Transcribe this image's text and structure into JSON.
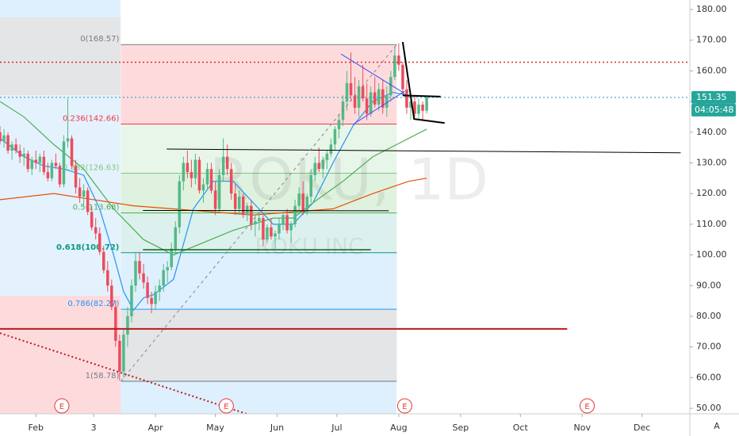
{
  "chart_data": {
    "type": "candlestick",
    "watermark": "ROKU, 1D",
    "subtitle": "ROKU INC",
    "xlim": [
      13,
      359
    ],
    "ylim": [
      48.2,
      183.1
    ],
    "grid": false,
    "up_color": "#53b987",
    "down_color": "#eb4d5c",
    "xticks": [
      {
        "value": 31,
        "label": "Feb"
      },
      {
        "value": 60,
        "label": "3"
      },
      {
        "value": 91,
        "label": "Apr"
      },
      {
        "value": 121,
        "label": "May"
      },
      {
        "value": 152,
        "label": "Jun"
      },
      {
        "value": 182,
        "label": "Jul"
      },
      {
        "value": 213,
        "label": "Aug"
      },
      {
        "value": 244,
        "label": "Sep"
      },
      {
        "value": 274,
        "label": "Oct"
      },
      {
        "value": 305,
        "label": "Nov"
      },
      {
        "value": 335,
        "label": "Dec"
      }
    ],
    "yticks": [
      {
        "value": 50,
        "label": "50.00"
      },
      {
        "value": 60,
        "label": "60.00"
      },
      {
        "value": 70,
        "label": "70.00"
      },
      {
        "value": 80,
        "label": "80.00"
      },
      {
        "value": 90,
        "label": "90.00"
      },
      {
        "value": 100,
        "label": "100.00"
      },
      {
        "value": 110,
        "label": "110.00"
      },
      {
        "value": 120,
        "label": "120.00"
      },
      {
        "value": 130,
        "label": "130.00"
      },
      {
        "value": 140,
        "label": "140.00"
      },
      {
        "value": 150,
        "label": "150.00"
      },
      {
        "value": 160,
        "label": "160.00"
      },
      {
        "value": 170,
        "label": "170.00"
      },
      {
        "value": 180,
        "label": "180.00"
      }
    ],
    "candles": {
      "x": [
        13,
        15,
        17,
        19,
        21,
        23,
        25,
        27,
        29,
        31,
        33,
        35,
        37,
        39,
        41,
        43,
        45,
        47,
        49,
        51,
        53,
        55,
        57,
        59,
        61,
        63,
        65,
        67,
        69,
        71,
        73,
        75,
        77,
        79,
        81,
        83,
        85,
        87,
        89,
        91,
        93,
        95,
        97,
        99,
        101,
        103,
        105,
        107,
        109,
        111,
        113,
        115,
        117,
        119,
        121,
        123,
        125,
        127,
        129,
        131,
        133,
        135,
        137,
        139,
        141,
        143,
        145,
        147,
        149,
        151,
        153,
        155,
        157,
        159,
        161,
        163,
        165,
        167,
        169,
        171,
        173,
        175,
        177,
        179,
        181,
        183,
        185,
        187,
        189,
        191,
        193,
        195,
        197,
        199,
        201,
        203,
        205,
        207,
        209,
        211,
        213,
        215,
        217,
        219,
        221,
        223,
        225,
        227
      ],
      "open": [
        140,
        137,
        139,
        134,
        136,
        134,
        132,
        133,
        128,
        131,
        130,
        132,
        127,
        125,
        130,
        129,
        123,
        137,
        138,
        129,
        122,
        119,
        121,
        114,
        109,
        107,
        101,
        95,
        90,
        83,
        72,
        62,
        74,
        80,
        90,
        98,
        94,
        91,
        86,
        84,
        88,
        90,
        95,
        96,
        102,
        109,
        124,
        130,
        127,
        125,
        131,
        121,
        123,
        128,
        121,
        115,
        126,
        132,
        128,
        120,
        115,
        119,
        113,
        116,
        110,
        111,
        112,
        105,
        109,
        106,
        107,
        110,
        113,
        108,
        110,
        116,
        120,
        114,
        119,
        126,
        130,
        128,
        131,
        133,
        136,
        141,
        144,
        150,
        156,
        152,
        148,
        155,
        151,
        146,
        153,
        149,
        154,
        148,
        152,
        158,
        165,
        162,
        154,
        148,
        150,
        146,
        149,
        147
      ],
      "high": [
        142,
        141,
        140,
        137,
        138,
        136,
        135,
        134,
        132,
        134,
        133,
        134,
        130,
        131,
        133,
        130,
        139,
        151,
        139,
        131,
        125,
        123,
        122,
        116,
        112,
        109,
        103,
        98,
        92,
        85,
        74,
        76,
        83,
        92,
        101,
        101,
        97,
        93,
        88,
        90,
        92,
        97,
        98,
        104,
        111,
        126,
        132,
        134,
        131,
        133,
        132,
        125,
        130,
        130,
        124,
        128,
        138,
        136,
        130,
        123,
        121,
        120,
        117,
        118,
        113,
        114,
        113,
        110,
        112,
        108,
        112,
        114,
        115,
        111,
        118,
        122,
        124,
        120,
        128,
        132,
        135,
        132,
        134,
        138,
        142,
        146,
        152,
        160,
        166,
        158,
        157,
        162,
        156,
        155,
        158,
        156,
        157,
        155,
        160,
        168,
        169,
        163,
        157,
        152,
        152,
        151,
        150,
        152
      ],
      "low": [
        136,
        135,
        133,
        131,
        133,
        130,
        129,
        127,
        126,
        128,
        127,
        126,
        124,
        124,
        128,
        122,
        122,
        135,
        128,
        120,
        117,
        116,
        113,
        108,
        105,
        100,
        94,
        88,
        82,
        70,
        59,
        60,
        70,
        78,
        88,
        92,
        89,
        84,
        81,
        82,
        85,
        88,
        91,
        95,
        100,
        107,
        121,
        125,
        122,
        123,
        120,
        117,
        121,
        120,
        113,
        114,
        124,
        126,
        118,
        113,
        113,
        112,
        111,
        108,
        106,
        108,
        103,
        104,
        105,
        102,
        105,
        108,
        107,
        104,
        109,
        114,
        113,
        113,
        117,
        124,
        127,
        125,
        128,
        132,
        134,
        138,
        142,
        147,
        150,
        146,
        145,
        150,
        144,
        145,
        148,
        147,
        146,
        145,
        150,
        157,
        160,
        152,
        146,
        144,
        145,
        144,
        144,
        146
      ],
      "close": [
        137,
        139,
        134,
        136,
        134,
        132,
        133,
        128,
        131,
        130,
        132,
        127,
        125,
        130,
        129,
        123,
        137,
        138,
        129,
        122,
        119,
        121,
        114,
        109,
        107,
        101,
        95,
        90,
        83,
        72,
        62,
        74,
        80,
        90,
        98,
        94,
        91,
        86,
        84,
        88,
        90,
        95,
        96,
        102,
        109,
        124,
        130,
        127,
        125,
        131,
        121,
        123,
        128,
        121,
        115,
        126,
        132,
        128,
        120,
        115,
        119,
        113,
        116,
        110,
        111,
        112,
        105,
        109,
        106,
        107,
        110,
        113,
        108,
        110,
        116,
        120,
        114,
        119,
        126,
        130,
        128,
        131,
        133,
        136,
        141,
        144,
        150,
        156,
        152,
        148,
        155,
        151,
        146,
        153,
        149,
        154,
        148,
        152,
        158,
        165,
        162,
        154,
        148,
        150,
        146,
        149,
        147,
        151.35
      ]
    },
    "moving_averages": [
      {
        "color": "#2196f3",
        "x": [
          13,
          25,
          35,
          45,
          55,
          63,
          70,
          75,
          80,
          85,
          90,
          100,
          110,
          120,
          130,
          140,
          150,
          160,
          170,
          180,
          190,
          200,
          210,
          218
        ],
        "values": [
          138,
          132,
          129,
          128,
          126,
          115,
          100,
          88,
          82,
          86,
          87,
          92,
          115,
          124,
          124,
          117,
          110,
          110,
          117,
          130,
          142,
          150,
          153,
          152
        ]
      },
      {
        "color": "#4caf50",
        "x": [
          13,
          25,
          40,
          55,
          70,
          85,
          100,
          115,
          130,
          140,
          150,
          160,
          170,
          185,
          200,
          215,
          227
        ],
        "values": [
          150,
          145,
          136,
          128,
          115,
          105,
          100,
          104,
          108,
          110,
          112,
          112,
          117,
          124,
          132,
          137,
          141
        ]
      },
      {
        "color": "#e65100",
        "x": [
          13,
          40,
          60,
          80,
          100,
          120,
          140,
          160,
          180,
          200,
          218,
          227
        ],
        "values": [
          118,
          120,
          118,
          116,
          115,
          114,
          113,
          114,
          115,
          120,
          124,
          125
        ]
      }
    ],
    "fib": {
      "x": [
        73.6,
        212
      ],
      "levels": [
        {
          "value": 168.57,
          "label": "0(168.57)"
        },
        {
          "value": 142.66,
          "label": "0.236(142.66)"
        },
        {
          "value": 126.63,
          "label": "0.382(126.63)"
        },
        {
          "value": 113.68,
          "label": "0.5(113.68)"
        },
        {
          "value": 100.72,
          "label": "0.618(100.72)"
        },
        {
          "value": 82.27,
          "label": "0.786(82.27)"
        },
        {
          "value": 58.78,
          "label": "1(58.78)"
        }
      ],
      "line_colors": [
        "#787b86",
        "#f23645",
        "#81c784",
        "#4caf50",
        "#089981",
        "#2196f3",
        "#787b86"
      ],
      "fills": [
        "rgba(242,54,69,0.18)",
        "rgba(129,199,132,0.18)",
        "rgba(76,175,80,0.18)",
        "rgba(8,153,129,0.14)",
        "rgba(33,150,243,0.15)",
        "rgba(120,123,134,0.2)"
      ]
    },
    "drawings": [
      {
        "color": "#d32f2f",
        "dash": "dot",
        "width": 1.5,
        "x": [
          13,
          359
        ],
        "values": [
          162.8,
          162.8
        ]
      },
      {
        "color": "#2196b0",
        "dash": "dot",
        "width": 1,
        "x": [
          13,
          359
        ],
        "values": [
          151.35,
          151.35
        ]
      },
      {
        "color": "#b71c1c",
        "dash": "solid",
        "width": 2,
        "x": [
          13,
          297.5
        ],
        "values": [
          75.9,
          75.9
        ]
      },
      {
        "color": "#000000",
        "dash": "solid",
        "width": 1,
        "x": [
          96.6,
          354.4
        ],
        "values": [
          134.5,
          133.3
        ]
      },
      {
        "color": "#000000",
        "dash": "solid",
        "width": 1,
        "x": [
          84.7,
          208
        ],
        "values": [
          114.5,
          114.4
        ]
      },
      {
        "color": "#1b5e20",
        "dash": "solid",
        "width": 1.5,
        "x": [
          84.7,
          199
        ],
        "values": [
          101.7,
          101.7
        ]
      },
      {
        "color": "#3f51f5",
        "dash": "solid",
        "width": 1,
        "x": [
          184,
          216
        ],
        "values": [
          165.5,
          152.6
        ]
      },
      {
        "color": "#3f51f5",
        "dash": "solid",
        "width": 1,
        "x": [
          190,
          216
        ],
        "values": [
          142.5,
          153.4
        ]
      },
      {
        "color": "#000000",
        "dash": "solid",
        "width": 2,
        "x": [
          215,
          220.7,
          236
        ],
        "values": [
          169.4,
          144.3,
          143.0
        ]
      },
      {
        "color": "#000000",
        "dash": "solid",
        "width": 2,
        "x": [
          215,
          234
        ],
        "values": [
          152,
          151.6
        ]
      },
      {
        "color": "#888888",
        "dash": "dash",
        "width": 1,
        "x": [
          73.6,
          212
        ],
        "values": [
          58.78,
          168.57
        ]
      },
      {
        "color": "#b71c1c",
        "dash": "dot",
        "width": 2,
        "x": [
          13,
          140.4
        ],
        "values": [
          74.5,
          47.4
        ]
      }
    ],
    "earnings": {
      "x": [
        44,
        126.5,
        216,
        307.5
      ],
      "label": "E"
    },
    "last_price": 151.35,
    "countdown": "04:05:48",
    "scale_mode": "A"
  }
}
